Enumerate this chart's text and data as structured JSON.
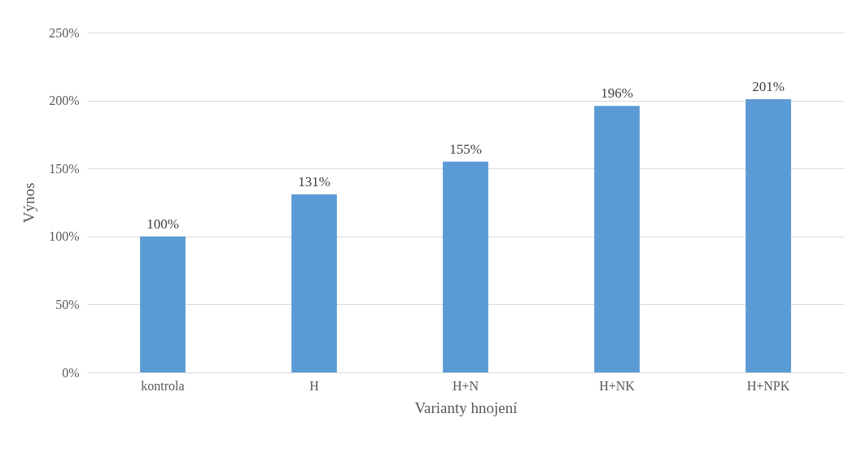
{
  "chart_data": {
    "type": "bar",
    "xlabel": "Varianty hnojení",
    "ylabel": "Výnos",
    "categories": [
      "kontrola",
      "H",
      "H+N",
      "H+NK",
      "H+NPK"
    ],
    "values": [
      100,
      131,
      155,
      196,
      201
    ],
    "value_labels": [
      "100%",
      "131%",
      "155%",
      "196%",
      "201%"
    ],
    "color": "#5b9bd5",
    "ylim": [
      0,
      250
    ],
    "yticks": [
      {
        "value": 0,
        "label": "0%"
      },
      {
        "value": 50,
        "label": "50%"
      },
      {
        "value": 100,
        "label": "100%"
      },
      {
        "value": 150,
        "label": "150%"
      },
      {
        "value": 200,
        "label": "200%"
      },
      {
        "value": 250,
        "label": "250%"
      }
    ],
    "grid": "y"
  }
}
